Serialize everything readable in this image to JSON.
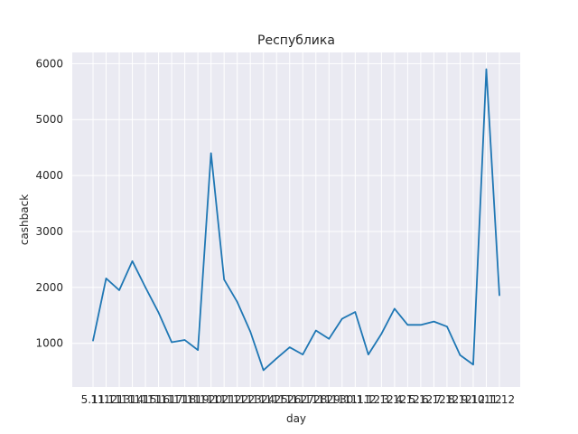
{
  "chart_data": {
    "type": "line",
    "title": "Республика",
    "xlabel": "day",
    "ylabel": "cashback",
    "x": [
      "5.11",
      "11.11",
      "12.11",
      "13.11",
      "14.11",
      "15.11",
      "16.11",
      "17.11",
      "18.11",
      "19.11",
      "20.11",
      "21.11",
      "22.11",
      "23.11",
      "24.11",
      "25.11",
      "26.11",
      "27.11",
      "28.11",
      "29.11",
      "30.11",
      "1.12",
      "2.12",
      "3.12",
      "4.12",
      "5.12",
      "6.12",
      "7.12",
      "8.12",
      "9.12",
      "10.12",
      "11.12"
    ],
    "x_tick_labels": [
      "5.11",
      "11.11",
      "12.11",
      "13.11",
      "14.11",
      "15.11",
      "16.11",
      "17.11",
      "18.11",
      "19.11",
      "20.11",
      "21.11",
      "22.11",
      "23.11",
      "24.11",
      "25.11",
      "26.11",
      "27.11",
      "28.11",
      "29.11",
      "30.11",
      "1.12",
      "2.12",
      "3.12",
      "4.12",
      "5.12",
      "6.12",
      "7.12",
      "8.12",
      "9.12",
      "10.12",
      "11.12"
    ],
    "series": [
      {
        "values": [
          1050,
          2160,
          1950,
          2470,
          2000,
          1550,
          1020,
          1060,
          880,
          4400,
          2140,
          1740,
          1210,
          520,
          730,
          930,
          800,
          1230,
          1080,
          1440,
          1560,
          800,
          1170,
          1620,
          1330,
          1330,
          1390,
          1300,
          790,
          620,
          5900,
          1860
        ]
      }
    ],
    "ylim": [
      220,
      6200
    ],
    "yticks": [
      1000,
      2000,
      3000,
      4000,
      5000,
      6000
    ],
    "grid": true,
    "color": "#1f77b4",
    "background": "#eaeaf2"
  }
}
